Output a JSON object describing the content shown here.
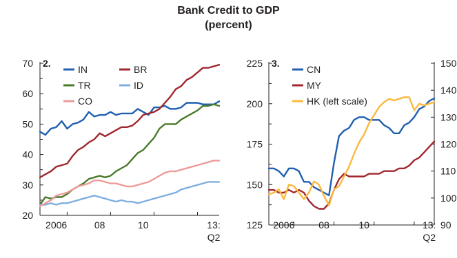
{
  "figure": {
    "title_line1": "Bank Credit to GDP",
    "title_line2": "(percent)"
  },
  "chart_data": [
    {
      "type": "line",
      "panel_label": "2.",
      "x_tick_labels": [
        "2006",
        "08",
        "10",
        "13:",
        "Q2"
      ],
      "x_range": [
        2005.25,
        2013.5
      ],
      "ylim": [
        20,
        70
      ],
      "y_ticks": [
        20,
        30,
        40,
        50,
        60,
        70
      ],
      "grid": false,
      "legend_placement": "top-center",
      "series": [
        {
          "name": "IN",
          "color": "#1f5fb0",
          "x": [
            2005.25,
            2005.5,
            2005.75,
            2006.0,
            2006.25,
            2006.5,
            2006.75,
            2007.0,
            2007.25,
            2007.5,
            2007.75,
            2008.0,
            2008.25,
            2008.5,
            2008.75,
            2009.0,
            2009.25,
            2009.5,
            2009.75,
            2010.0,
            2010.25,
            2010.5,
            2010.75,
            2011.0,
            2011.25,
            2011.5,
            2011.75,
            2012.0,
            2012.25,
            2012.5,
            2012.75,
            2013.0,
            2013.25,
            2013.5
          ],
          "y": [
            47.5,
            46.5,
            48.5,
            49.0,
            51.0,
            48.5,
            50.0,
            50.5,
            51.5,
            54.0,
            52.5,
            53.0,
            53.0,
            54.0,
            53.0,
            53.5,
            53.5,
            53.5,
            55.0,
            54.0,
            53.0,
            55.5,
            55.5,
            56.0,
            55.0,
            55.0,
            55.5,
            57.0,
            57.0,
            57.0,
            56.5,
            56.5,
            56.5,
            57.5
          ]
        },
        {
          "name": "BR",
          "color": "#a0272d",
          "x": [
            2005.25,
            2005.5,
            2005.75,
            2006.0,
            2006.25,
            2006.5,
            2006.75,
            2007.0,
            2007.25,
            2007.5,
            2007.75,
            2008.0,
            2008.25,
            2008.5,
            2008.75,
            2009.0,
            2009.25,
            2009.5,
            2009.75,
            2010.0,
            2010.25,
            2010.5,
            2010.75,
            2011.0,
            2011.25,
            2011.5,
            2011.75,
            2012.0,
            2012.25,
            2012.5,
            2012.75,
            2013.0,
            2013.25,
            2013.5
          ],
          "y": [
            32.5,
            33.5,
            34.5,
            36.0,
            36.5,
            37.0,
            39.5,
            41.5,
            42.5,
            44.0,
            45.0,
            47.0,
            46.0,
            47.0,
            48.0,
            49.0,
            49.0,
            49.5,
            51.0,
            53.0,
            53.5,
            54.0,
            55.0,
            57.0,
            59.0,
            61.5,
            62.5,
            64.5,
            65.5,
            67.0,
            68.5,
            68.5,
            69.0,
            69.5
          ]
        },
        {
          "name": "TR",
          "color": "#4a7a2a",
          "x": [
            2005.25,
            2005.5,
            2005.75,
            2006.0,
            2006.25,
            2006.5,
            2006.75,
            2007.0,
            2007.25,
            2007.5,
            2007.75,
            2008.0,
            2008.25,
            2008.5,
            2008.75,
            2009.0,
            2009.25,
            2009.5,
            2009.75,
            2010.0,
            2010.25,
            2010.5,
            2010.75,
            2011.0,
            2011.25,
            2011.5,
            2011.75,
            2012.0,
            2012.25,
            2012.5,
            2012.75,
            2013.0,
            2013.25,
            2013.5
          ],
          "y": [
            23.5,
            26.0,
            25.5,
            26.0,
            26.0,
            27.0,
            28.5,
            29.5,
            30.5,
            32.0,
            32.5,
            33.0,
            32.5,
            33.0,
            34.5,
            35.5,
            36.5,
            38.5,
            40.5,
            41.5,
            43.5,
            45.5,
            48.5,
            50.0,
            50.0,
            50.0,
            51.5,
            52.5,
            53.5,
            54.5,
            56.0,
            56.0,
            56.5,
            56.0
          ]
        },
        {
          "name": "ID",
          "color": "#7faee0",
          "x": [
            2005.25,
            2005.5,
            2005.75,
            2006.0,
            2006.25,
            2006.5,
            2006.75,
            2007.0,
            2007.25,
            2007.5,
            2007.75,
            2008.0,
            2008.25,
            2008.5,
            2008.75,
            2009.0,
            2009.25,
            2009.5,
            2009.75,
            2010.0,
            2010.25,
            2010.5,
            2010.75,
            2011.0,
            2011.25,
            2011.5,
            2011.75,
            2012.0,
            2012.25,
            2012.5,
            2012.75,
            2013.0,
            2013.25,
            2013.5
          ],
          "y": [
            23.5,
            23.5,
            24.0,
            23.5,
            24.0,
            24.0,
            24.5,
            25.0,
            25.5,
            26.0,
            26.5,
            26.0,
            25.5,
            25.0,
            24.5,
            25.0,
            24.5,
            24.5,
            24.0,
            24.5,
            25.0,
            25.5,
            26.0,
            26.5,
            27.0,
            27.5,
            28.5,
            29.0,
            29.5,
            30.0,
            30.5,
            31.0,
            31.0,
            31.0
          ]
        },
        {
          "name": "CO",
          "color": "#ec9b97",
          "x": [
            2005.25,
            2005.5,
            2005.75,
            2006.0,
            2006.25,
            2006.5,
            2006.75,
            2007.0,
            2007.25,
            2007.5,
            2007.75,
            2008.0,
            2008.25,
            2008.5,
            2008.75,
            2009.0,
            2009.25,
            2009.5,
            2009.75,
            2010.0,
            2010.25,
            2010.5,
            2010.75,
            2011.0,
            2011.25,
            2011.5,
            2011.75,
            2012.0,
            2012.25,
            2012.5,
            2012.75,
            2013.0,
            2013.25,
            2013.5
          ],
          "y": [
            23.0,
            24.0,
            25.0,
            26.5,
            27.0,
            27.5,
            28.5,
            29.5,
            30.0,
            30.5,
            31.5,
            31.5,
            31.0,
            30.5,
            30.5,
            30.0,
            29.5,
            29.5,
            30.0,
            30.5,
            31.0,
            32.0,
            33.0,
            34.0,
            34.5,
            34.5,
            35.0,
            35.5,
            36.0,
            36.5,
            37.0,
            37.5,
            38.0,
            38.0
          ]
        }
      ]
    },
    {
      "type": "line",
      "panel_label": "3.",
      "x_tick_labels": [
        "2006",
        "08",
        "10",
        "13:",
        "Q2"
      ],
      "x_range": [
        2005.25,
        2013.5
      ],
      "ylim_left": [
        125,
        225
      ],
      "y_ticks_left": [
        125,
        150,
        175,
        200,
        225
      ],
      "ylim_right": [
        90,
        150
      ],
      "y_ticks_right": [
        90,
        100,
        110,
        120,
        130,
        140,
        150
      ],
      "grid": false,
      "legend_placement": "top-left",
      "series": [
        {
          "name": "CN",
          "color": "#1f5fb0",
          "axis": "right",
          "x": [
            2005.25,
            2005.5,
            2005.75,
            2006.0,
            2006.25,
            2006.5,
            2006.75,
            2007.0,
            2007.25,
            2007.5,
            2007.75,
            2008.0,
            2008.25,
            2008.5,
            2008.75,
            2009.0,
            2009.25,
            2009.5,
            2009.75,
            2010.0,
            2010.25,
            2010.5,
            2010.75,
            2011.0,
            2011.25,
            2011.5,
            2011.75,
            2012.0,
            2012.25,
            2012.5,
            2012.75,
            2013.0,
            2013.25,
            2013.5
          ],
          "y": [
            111,
            111,
            110,
            108,
            111,
            111,
            110,
            106,
            106,
            104,
            103,
            102,
            101,
            113,
            123,
            125,
            126,
            129,
            130,
            130,
            129,
            129,
            129,
            127,
            126,
            124,
            124,
            127,
            128,
            130,
            133,
            134,
            136,
            137
          ]
        },
        {
          "name": "MY",
          "color": "#a0272d",
          "axis": "right",
          "x": [
            2005.25,
            2005.5,
            2005.75,
            2006.0,
            2006.25,
            2006.5,
            2006.75,
            2007.0,
            2007.25,
            2007.5,
            2007.75,
            2008.0,
            2008.25,
            2008.5,
            2008.75,
            2009.0,
            2009.25,
            2009.5,
            2009.75,
            2010.0,
            2010.25,
            2010.5,
            2010.75,
            2011.0,
            2011.25,
            2011.5,
            2011.75,
            2012.0,
            2012.25,
            2012.5,
            2012.75,
            2013.0,
            2013.25,
            2013.5
          ],
          "y": [
            103,
            103,
            102,
            102,
            103,
            102,
            103,
            102,
            99,
            97,
            96,
            96,
            98,
            103,
            107,
            109,
            108,
            108,
            108,
            108,
            109,
            109,
            109,
            110,
            110,
            110,
            111,
            111,
            112,
            114,
            115,
            117,
            119,
            121
          ]
        },
        {
          "name": "HK (left scale)",
          "color": "#fbb93d",
          "axis": "left",
          "x": [
            2005.25,
            2005.5,
            2005.75,
            2006.0,
            2006.25,
            2006.5,
            2006.75,
            2007.0,
            2007.25,
            2007.5,
            2007.75,
            2008.0,
            2008.25,
            2008.5,
            2008.75,
            2009.0,
            2009.25,
            2009.5,
            2009.75,
            2010.0,
            2010.25,
            2010.5,
            2010.75,
            2011.0,
            2011.25,
            2011.5,
            2011.75,
            2012.0,
            2012.25,
            2012.5,
            2012.75,
            2013.0,
            2013.25,
            2013.5
          ],
          "y": [
            144,
            145,
            147,
            141,
            150,
            149,
            145,
            141,
            145,
            152,
            150,
            143,
            137,
            147,
            149,
            155,
            161,
            169,
            176,
            181,
            188,
            193,
            198,
            201,
            203,
            202,
            203,
            204,
            204,
            196,
            200,
            199,
            200,
            201
          ]
        }
      ]
    }
  ]
}
